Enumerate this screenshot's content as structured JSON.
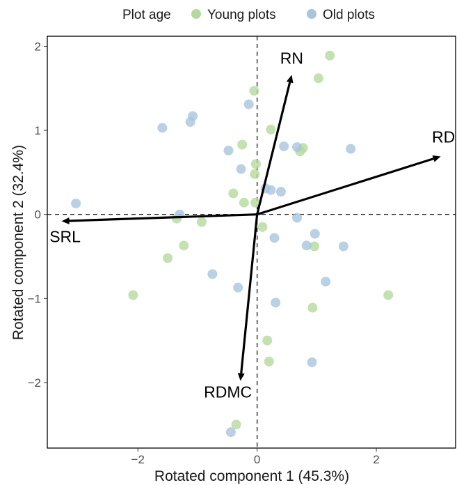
{
  "chart_data": {
    "type": "scatter",
    "xlabel": "Rotated component 1 (45.3%)",
    "ylabel": "Rotated component 2 (32.4%)",
    "xlim": [
      -3.52,
      3.33
    ],
    "ylim": [
      -2.78,
      2.12
    ],
    "x_ticks": [
      -2,
      0,
      2
    ],
    "y_ticks": [
      -2,
      -1,
      0,
      1,
      2
    ],
    "grid": false,
    "reference_lines": {
      "x": 0,
      "y": 0,
      "style": "dashed"
    },
    "legend": {
      "title": "Plot age",
      "position": "top",
      "entries": [
        "Young plots",
        "Old plots"
      ]
    },
    "series": [
      {
        "name": "Young plots",
        "color": "#b5d99c",
        "points": [
          [
            1.22,
            1.89
          ],
          [
            1.03,
            1.62
          ],
          [
            -0.05,
            1.47
          ],
          [
            0.23,
            1.01
          ],
          [
            -0.25,
            0.83
          ],
          [
            0.72,
            0.75
          ],
          [
            0.77,
            0.79
          ],
          [
            -0.02,
            0.6
          ],
          [
            -0.04,
            0.48
          ],
          [
            -0.4,
            0.25
          ],
          [
            -0.22,
            0.14
          ],
          [
            -0.03,
            0.14
          ],
          [
            -1.35,
            -0.05
          ],
          [
            -0.93,
            -0.09
          ],
          [
            0.09,
            -0.15
          ],
          [
            -1.23,
            -0.37
          ],
          [
            0.96,
            -0.38
          ],
          [
            -1.5,
            -0.52
          ],
          [
            -2.08,
            -0.96
          ],
          [
            0.93,
            -1.11
          ],
          [
            2.2,
            -0.96
          ],
          [
            0.17,
            -1.5
          ],
          [
            0.2,
            -1.75
          ],
          [
            -0.35,
            -2.5
          ]
        ]
      },
      {
        "name": "Old plots",
        "color": "#a9c4de",
        "points": [
          [
            -0.14,
            1.31
          ],
          [
            -1.08,
            1.17
          ],
          [
            -1.12,
            1.1
          ],
          [
            -1.59,
            1.03
          ],
          [
            -0.48,
            0.76
          ],
          [
            -0.27,
            0.54
          ],
          [
            0.45,
            0.81
          ],
          [
            0.67,
            0.8
          ],
          [
            1.57,
            0.78
          ],
          [
            0.14,
            0.31
          ],
          [
            0.23,
            0.29
          ],
          [
            0.4,
            0.27
          ],
          [
            -3.04,
            0.13
          ],
          [
            -1.3,
            0.0
          ],
          [
            0.67,
            -0.04
          ],
          [
            0.97,
            -0.23
          ],
          [
            0.29,
            -0.28
          ],
          [
            0.83,
            -0.37
          ],
          [
            1.45,
            -0.38
          ],
          [
            -0.75,
            -0.71
          ],
          [
            1.15,
            -0.8
          ],
          [
            -0.32,
            -0.87
          ],
          [
            0.31,
            -1.05
          ],
          [
            0.92,
            -1.76
          ],
          [
            -0.44,
            -2.59
          ]
        ]
      }
    ],
    "loading_vectors": [
      {
        "label": "RN",
        "x": 0.58,
        "y": 1.66
      },
      {
        "label": "RD",
        "x": 3.08,
        "y": 0.69
      },
      {
        "label": "SRL",
        "x": -3.28,
        "y": -0.08
      },
      {
        "label": "RDMC",
        "x": -0.28,
        "y": -1.98
      }
    ]
  }
}
